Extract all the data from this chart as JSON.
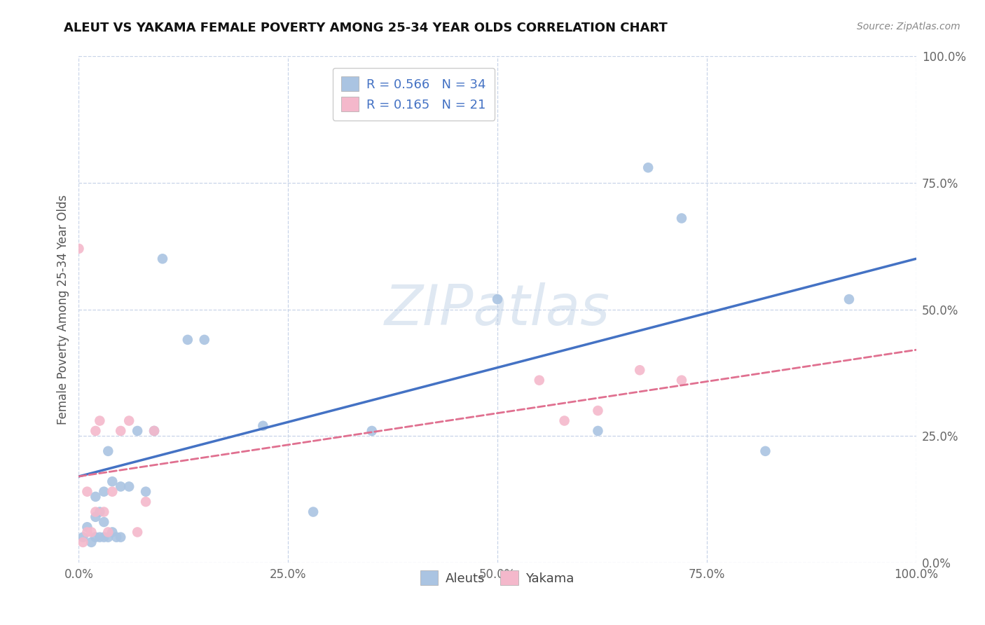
{
  "title": "ALEUT VS YAKAMA FEMALE POVERTY AMONG 25-34 YEAR OLDS CORRELATION CHART",
  "source": "Source: ZipAtlas.com",
  "ylabel": "Female Poverty Among 25-34 Year Olds",
  "xlim": [
    0,
    1.0
  ],
  "ylim": [
    0,
    1.0
  ],
  "xticks": [
    0.0,
    0.25,
    0.5,
    0.75,
    1.0
  ],
  "yticks": [
    0.0,
    0.25,
    0.5,
    0.75,
    1.0
  ],
  "xticklabels": [
    "0.0%",
    "25.0%",
    "50.0%",
    "75.0%",
    "100.0%"
  ],
  "yticklabels": [
    "0.0%",
    "25.0%",
    "50.0%",
    "75.0%",
    "100.0%"
  ],
  "aleuts_R": "0.566",
  "aleuts_N": "34",
  "yakama_R": "0.165",
  "yakama_N": "21",
  "aleuts_color": "#aac4e2",
  "aleuts_line_color": "#4472c4",
  "yakama_color": "#f4b8cb",
  "yakama_line_color": "#e07090",
  "grid_color": "#c8d4e8",
  "background_color": "#ffffff",
  "watermark": "ZIPatlas",
  "aleuts_x": [
    0.005,
    0.01,
    0.015,
    0.02,
    0.02,
    0.02,
    0.025,
    0.025,
    0.03,
    0.03,
    0.03,
    0.035,
    0.035,
    0.04,
    0.04,
    0.045,
    0.05,
    0.05,
    0.06,
    0.07,
    0.08,
    0.09,
    0.1,
    0.13,
    0.15,
    0.22,
    0.28,
    0.35,
    0.5,
    0.62,
    0.68,
    0.72,
    0.82,
    0.92
  ],
  "aleuts_y": [
    0.05,
    0.07,
    0.04,
    0.05,
    0.09,
    0.13,
    0.05,
    0.1,
    0.05,
    0.08,
    0.14,
    0.05,
    0.22,
    0.06,
    0.16,
    0.05,
    0.05,
    0.15,
    0.15,
    0.26,
    0.14,
    0.26,
    0.6,
    0.44,
    0.44,
    0.27,
    0.1,
    0.26,
    0.52,
    0.26,
    0.78,
    0.68,
    0.22,
    0.52
  ],
  "yakama_x": [
    0.0,
    0.005,
    0.01,
    0.01,
    0.015,
    0.02,
    0.02,
    0.025,
    0.03,
    0.035,
    0.04,
    0.05,
    0.06,
    0.07,
    0.08,
    0.09,
    0.55,
    0.58,
    0.62,
    0.67,
    0.72
  ],
  "yakama_y": [
    0.62,
    0.04,
    0.06,
    0.14,
    0.06,
    0.1,
    0.26,
    0.28,
    0.1,
    0.06,
    0.14,
    0.26,
    0.28,
    0.06,
    0.12,
    0.26,
    0.36,
    0.28,
    0.3,
    0.38,
    0.36
  ],
  "aleuts_line_x0": 0.0,
  "aleuts_line_y0": 0.17,
  "aleuts_line_x1": 1.0,
  "aleuts_line_y1": 0.6,
  "yakama_line_x0": 0.0,
  "yakama_line_y0": 0.17,
  "yakama_line_x1": 1.0,
  "yakama_line_y1": 0.42
}
